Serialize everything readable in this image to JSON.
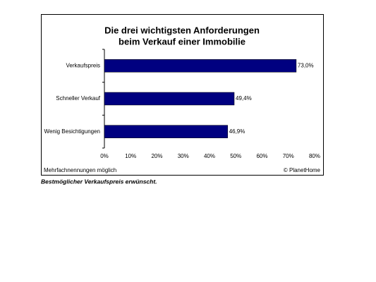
{
  "chart_data": {
    "type": "bar",
    "orientation": "horizontal",
    "title": [
      "Die drei wichtigsten Anforderungen",
      "beim Verkauf einer Immobilie"
    ],
    "categories": [
      "Verkaufspreis",
      "Schneller Verkauf",
      "Wenig Besichtigungen"
    ],
    "values": [
      73.0,
      49.4,
      46.9
    ],
    "value_labels": [
      "73,0%",
      "49,4%",
      "46,9%"
    ],
    "color": "#000080",
    "xlim": [
      0,
      80
    ],
    "xticks": [
      {
        "value": 0,
        "label": "0%"
      },
      {
        "value": 10,
        "label": "10%"
      },
      {
        "value": 20,
        "label": "20%"
      },
      {
        "value": 30,
        "label": "30%"
      },
      {
        "value": 40,
        "label": "40%"
      },
      {
        "value": 50,
        "label": "50%"
      },
      {
        "value": 60,
        "label": "60%"
      },
      {
        "value": 70,
        "label": "70%"
      },
      {
        "value": 80,
        "label": "80%"
      }
    ],
    "grid": false,
    "footnote_left": "Mehrfachnennungen möglich",
    "footnote_right": "© PlanetHome",
    "caption": "Bestmöglicher Verkaufspreis erwünscht."
  }
}
